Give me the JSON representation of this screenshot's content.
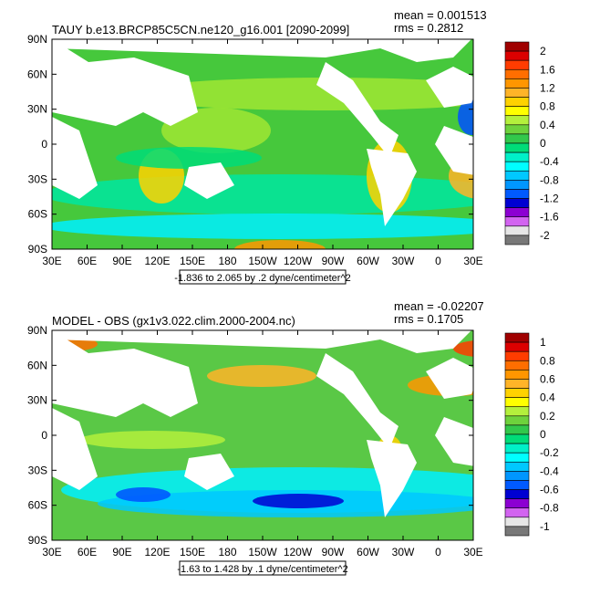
{
  "lon_labels": [
    "30E",
    "60E",
    "90E",
    "120E",
    "150E",
    "180",
    "150W",
    "120W",
    "90W",
    "60W",
    "30W",
    "0",
    "30E"
  ],
  "lat_labels": [
    "90N",
    "60N",
    "30N",
    "0",
    "30S",
    "60S",
    "90S"
  ],
  "panels": [
    {
      "title": "TAUY b.e13.BRCP85C5CN.ne120_g16.001 [2090-2099]",
      "mean": "mean = 0.001513",
      "rms": "rms = 0.2812",
      "contour_info": "-1.836 to 2.065 by .2 dyne/centimeter^2",
      "colorbar": {
        "labels": [
          "2",
          "1.6",
          "1.2",
          "0.8",
          "0.4",
          "0",
          "-0.4",
          "-0.8",
          "-1.2",
          "-1.6",
          "-2"
        ],
        "colors": [
          "#a00000",
          "#dc0000",
          "#ff3c00",
          "#ff6e00",
          "#ff9600",
          "#ffb428",
          "#ffd200",
          "#ffff00",
          "#b4f03c",
          "#6ed23c",
          "#32c84b",
          "#00dc78",
          "#00f0c8",
          "#00ffff",
          "#00c8ff",
          "#0096ff",
          "#005aff",
          "#0000d2",
          "#8c00d2",
          "#d264f0",
          "#e6e6e6",
          "#787878"
        ]
      }
    },
    {
      "title": "MODEL - OBS (gx1v3.022.clim.2000-2004.nc)",
      "mean": "mean = -0.02207",
      "rms": "rms = 0.1705",
      "contour_info": "-1.63 to 1.428 by .1 dyne/centimeter^2",
      "colorbar": {
        "labels": [
          "1",
          "0.8",
          "0.6",
          "0.4",
          "0.2",
          "0",
          "-0.2",
          "-0.4",
          "-0.6",
          "-0.8",
          "-1"
        ],
        "colors": [
          "#a00000",
          "#dc0000",
          "#ff3c00",
          "#ff6e00",
          "#ff9600",
          "#ffb428",
          "#ffd200",
          "#ffff00",
          "#b4f03c",
          "#6ed23c",
          "#32c84b",
          "#00dc78",
          "#00f0c8",
          "#00ffff",
          "#00c8ff",
          "#0096ff",
          "#005aff",
          "#0000d2",
          "#8c00d2",
          "#d264f0",
          "#e6e6e6",
          "#787878"
        ]
      }
    }
  ]
}
